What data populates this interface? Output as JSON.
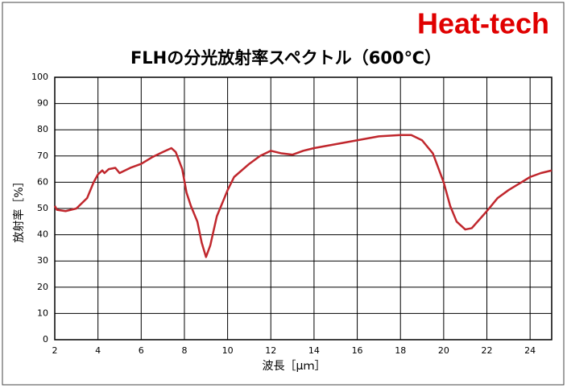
{
  "chart_data": {
    "type": "line",
    "brand": "Heat-tech",
    "title": "FLHの分光放射率スペクトル（600℃）",
    "xlabel": "波長［μｍ］",
    "ylabel": "放射率［%］",
    "x": [
      2,
      2.1,
      2.5,
      3,
      3.5,
      3.8,
      4,
      4.2,
      4.3,
      4.5,
      4.8,
      5,
      5.5,
      6,
      6.5,
      7,
      7.4,
      7.6,
      7.9,
      8.1,
      8.3,
      8.6,
      8.8,
      9,
      9.2,
      9.5,
      10,
      10.3,
      11,
      11.5,
      12,
      12.5,
      13,
      13.5,
      14,
      15,
      16,
      17,
      18,
      18.5,
      19,
      19.5,
      20,
      20.3,
      20.6,
      21,
      21.3,
      22,
      22.5,
      23,
      23.5,
      24,
      24.5,
      25
    ],
    "series": [
      {
        "color": "#c0272d",
        "values": [
          51,
          49.5,
          49,
          50,
          54,
          60,
          63,
          64.5,
          63.5,
          65,
          65.5,
          63.5,
          65.5,
          67,
          69.5,
          71.5,
          73,
          71.5,
          65,
          56,
          51,
          45,
          37,
          31.5,
          36,
          47,
          57,
          62,
          67,
          70,
          72,
          71,
          70.5,
          72,
          73,
          74.5,
          76,
          77.5,
          78,
          78,
          76,
          71,
          60,
          51,
          45,
          42,
          42.5,
          49,
          54,
          57,
          59.5,
          62,
          63.5,
          64.5
        ]
      }
    ],
    "xlim": [
      2,
      25
    ],
    "ylim": [
      0,
      100
    ],
    "xticks": [
      2,
      4,
      6,
      8,
      10,
      12,
      14,
      16,
      18,
      20,
      22,
      24
    ],
    "yticks": [
      0,
      10,
      20,
      30,
      40,
      50,
      60,
      70,
      80,
      90,
      100
    ],
    "grid": true
  }
}
